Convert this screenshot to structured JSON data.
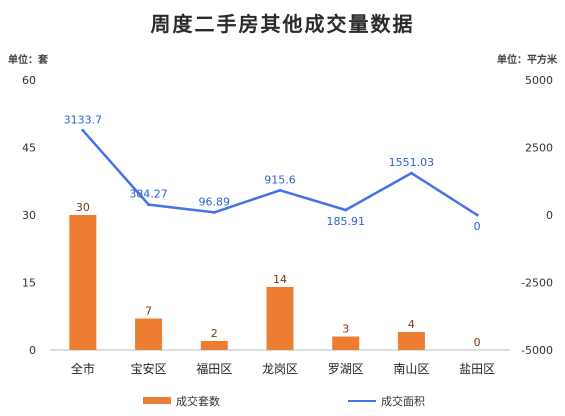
{
  "chart_data": {
    "type": "bar+line",
    "title": "周度二手房其他成交量数据",
    "left_axis_unit": "单位：套",
    "right_axis_unit": "单位：平方米",
    "categories": [
      "全市",
      "宝安区",
      "福田区",
      "龙岗区",
      "罗湖区",
      "南山区",
      "盐田区"
    ],
    "left_ticks": [
      "0",
      "15",
      "30",
      "45",
      "60"
    ],
    "right_ticks": [
      "-5000",
      "-2500",
      "0",
      "2500",
      "5000"
    ],
    "ylim_left": [
      0,
      60
    ],
    "ylim_right": [
      -5000,
      5000
    ],
    "series": [
      {
        "name": "成交套数",
        "type": "bar",
        "axis": "left",
        "color": "#ed7d31",
        "values": [
          30,
          7,
          2,
          14,
          3,
          4,
          0
        ],
        "labels": [
          "30",
          "7",
          "2",
          "14",
          "3",
          "4",
          "0"
        ]
      },
      {
        "name": "成交面积",
        "type": "line",
        "axis": "right",
        "color": "#4472e8",
        "values": [
          3133.7,
          384.27,
          96.89,
          915.6,
          185.91,
          1551.03,
          0
        ],
        "labels": [
          "3133.7",
          "384.27",
          "96.89",
          "915.6",
          "185.91",
          "1551.03",
          "0"
        ],
        "label_positions": [
          "above",
          "above",
          "above",
          "above",
          "below",
          "above",
          "below"
        ]
      }
    ],
    "legend_placement": "bottom-center",
    "grid": false
  }
}
